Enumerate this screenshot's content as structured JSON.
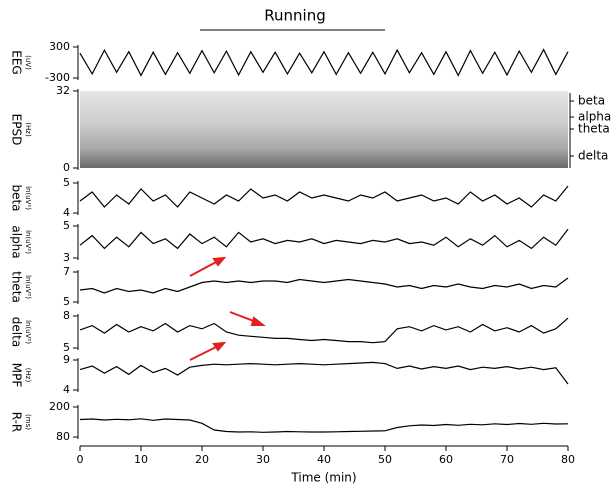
{
  "chart_data": [
    {
      "type": "line",
      "title": "Running",
      "ylabel": "EEG",
      "yunit": "(uV)",
      "xlim": [
        0,
        80
      ],
      "ylim": [
        -300,
        300
      ],
      "yticks": [
        300,
        -300
      ],
      "color": "#000000",
      "x": [
        0,
        2,
        4,
        6,
        8,
        10,
        12,
        14,
        16,
        18,
        20,
        22,
        24,
        26,
        28,
        30,
        32,
        34,
        36,
        38,
        40,
        42,
        44,
        46,
        48,
        50,
        52,
        54,
        56,
        58,
        60,
        62,
        64,
        66,
        68,
        70,
        72,
        74,
        76,
        78,
        80
      ],
      "values": [
        180,
        -220,
        240,
        -190,
        210,
        -250,
        200,
        -230,
        190,
        -210,
        230,
        -200,
        220,
        -240,
        210,
        -190,
        200,
        -220,
        180,
        -200,
        210,
        -230,
        190,
        -210,
        200,
        -220,
        240,
        -200,
        190,
        -230,
        210,
        -250,
        230,
        -210,
        200,
        -240,
        220,
        -190,
        250,
        -230,
        210
      ]
    },
    {
      "type": "spectrogram",
      "ylabel": "EPSD",
      "yunit": "(Hz)",
      "xlim": [
        0,
        80
      ],
      "ylim": [
        0,
        32
      ],
      "yticks": [
        32,
        0
      ],
      "band_labels": [
        "beta",
        "alpha",
        "theta",
        "delta"
      ]
    },
    {
      "type": "line",
      "ylabel": "beta",
      "yunit": "ln(uV²)",
      "xlim": [
        0,
        80
      ],
      "ylim": [
        4,
        5
      ],
      "yticks": [
        5,
        4
      ],
      "color": "#000000",
      "x": [
        0,
        2,
        4,
        6,
        8,
        10,
        12,
        14,
        16,
        18,
        20,
        22,
        24,
        26,
        28,
        30,
        32,
        34,
        36,
        38,
        40,
        42,
        44,
        46,
        48,
        50,
        52,
        54,
        56,
        58,
        60,
        62,
        64,
        66,
        68,
        70,
        72,
        74,
        76,
        78,
        80
      ],
      "values": [
        4.4,
        4.7,
        4.2,
        4.6,
        4.3,
        4.8,
        4.4,
        4.6,
        4.2,
        4.7,
        4.5,
        4.3,
        4.6,
        4.4,
        4.8,
        4.5,
        4.6,
        4.4,
        4.7,
        4.5,
        4.6,
        4.5,
        4.4,
        4.6,
        4.5,
        4.7,
        4.4,
        4.5,
        4.6,
        4.4,
        4.5,
        4.3,
        4.7,
        4.4,
        4.6,
        4.3,
        4.5,
        4.2,
        4.6,
        4.4,
        4.9
      ]
    },
    {
      "type": "line",
      "ylabel": "alpha",
      "yunit": "ln(uV²)",
      "xlim": [
        0,
        80
      ],
      "ylim": [
        3,
        5
      ],
      "yticks": [
        5,
        3
      ],
      "color": "#000000",
      "x": [
        0,
        2,
        4,
        6,
        8,
        10,
        12,
        14,
        16,
        18,
        20,
        22,
        24,
        26,
        28,
        30,
        32,
        34,
        36,
        38,
        40,
        42,
        44,
        46,
        48,
        50,
        52,
        54,
        56,
        58,
        60,
        62,
        64,
        66,
        68,
        70,
        72,
        74,
        76,
        78,
        80
      ],
      "values": [
        3.8,
        4.4,
        3.6,
        4.3,
        3.7,
        4.6,
        3.9,
        4.2,
        3.6,
        4.5,
        3.9,
        4.3,
        3.7,
        4.6,
        4.0,
        4.2,
        3.9,
        4.1,
        4.0,
        4.2,
        3.9,
        4.1,
        4.0,
        3.9,
        4.1,
        4.0,
        4.2,
        3.9,
        4.0,
        3.8,
        4.3,
        3.7,
        4.2,
        3.8,
        4.4,
        3.7,
        4.1,
        3.6,
        4.3,
        3.8,
        4.8
      ]
    },
    {
      "type": "line",
      "ylabel": "theta",
      "yunit": "ln(uV²)",
      "xlim": [
        0,
        80
      ],
      "ylim": [
        5,
        7
      ],
      "yticks": [
        7,
        5
      ],
      "color": "#000000",
      "x": [
        0,
        2,
        4,
        6,
        8,
        10,
        12,
        14,
        16,
        18,
        20,
        22,
        24,
        26,
        28,
        30,
        32,
        34,
        36,
        38,
        40,
        42,
        44,
        46,
        48,
        50,
        52,
        54,
        56,
        58,
        60,
        62,
        64,
        66,
        68,
        70,
        72,
        74,
        76,
        78,
        80
      ],
      "values": [
        5.8,
        5.9,
        5.6,
        5.9,
        5.7,
        5.8,
        5.6,
        5.9,
        5.7,
        6.0,
        6.3,
        6.4,
        6.3,
        6.4,
        6.3,
        6.4,
        6.4,
        6.3,
        6.5,
        6.4,
        6.3,
        6.4,
        6.5,
        6.4,
        6.3,
        6.2,
        6.0,
        6.1,
        5.9,
        6.1,
        6.0,
        6.2,
        6.0,
        5.9,
        6.1,
        6.0,
        6.2,
        5.9,
        6.1,
        6.0,
        6.6
      ]
    },
    {
      "type": "line",
      "ylabel": "delta",
      "yunit": "ln(uV²)",
      "xlim": [
        0,
        80
      ],
      "ylim": [
        5,
        8
      ],
      "yticks": [
        8,
        5
      ],
      "color": "#000000",
      "x": [
        0,
        2,
        4,
        6,
        8,
        10,
        12,
        14,
        16,
        18,
        20,
        22,
        24,
        26,
        28,
        30,
        32,
        34,
        36,
        38,
        40,
        42,
        44,
        46,
        48,
        50,
        52,
        54,
        56,
        58,
        60,
        62,
        64,
        66,
        68,
        70,
        72,
        74,
        76,
        78,
        80
      ],
      "values": [
        6.7,
        7.1,
        6.4,
        7.2,
        6.5,
        7.0,
        6.6,
        7.3,
        6.5,
        7.1,
        6.8,
        7.3,
        6.5,
        6.2,
        6.1,
        6.0,
        5.9,
        5.9,
        5.8,
        5.7,
        5.8,
        5.7,
        5.6,
        5.6,
        5.5,
        5.6,
        6.8,
        7.0,
        6.6,
        7.1,
        6.7,
        7.0,
        6.5,
        7.2,
        6.6,
        6.9,
        6.5,
        7.1,
        6.4,
        6.8,
        7.8
      ]
    },
    {
      "type": "line",
      "ylabel": "MPF",
      "yunit": "(Hz)",
      "xlim": [
        0,
        80
      ],
      "ylim": [
        4,
        9
      ],
      "yticks": [
        9,
        4
      ],
      "color": "#000000",
      "x": [
        0,
        2,
        4,
        6,
        8,
        10,
        12,
        14,
        16,
        18,
        20,
        22,
        24,
        26,
        28,
        30,
        32,
        34,
        36,
        38,
        40,
        42,
        44,
        46,
        48,
        50,
        52,
        54,
        56,
        58,
        60,
        62,
        64,
        66,
        68,
        70,
        72,
        74,
        76,
        78,
        80
      ],
      "values": [
        7.4,
        8.0,
        6.8,
        7.9,
        6.6,
        8.1,
        6.9,
        7.6,
        6.5,
        7.8,
        8.1,
        8.3,
        8.2,
        8.3,
        8.4,
        8.3,
        8.2,
        8.3,
        8.4,
        8.3,
        8.2,
        8.3,
        8.4,
        8.5,
        8.6,
        8.4,
        7.6,
        8.0,
        7.5,
        7.9,
        7.6,
        8.0,
        7.4,
        7.8,
        7.6,
        7.9,
        7.5,
        7.8,
        7.4,
        7.7,
        5.0
      ]
    },
    {
      "type": "line",
      "ylabel": "R-R",
      "yunit": "(ms)",
      "xlabel": "Time (min)",
      "xlim": [
        0,
        80
      ],
      "xticks": [
        0,
        10,
        20,
        30,
        40,
        50,
        60,
        70,
        80
      ],
      "ylim": [
        80,
        200
      ],
      "yticks": [
        200,
        80
      ],
      "color": "#000000",
      "x": [
        0,
        2,
        4,
        6,
        8,
        10,
        12,
        14,
        16,
        18,
        20,
        22,
        24,
        26,
        28,
        30,
        32,
        34,
        36,
        38,
        40,
        42,
        44,
        46,
        48,
        50,
        52,
        54,
        56,
        58,
        60,
        62,
        64,
        66,
        68,
        70,
        72,
        74,
        76,
        78,
        80
      ],
      "values": [
        150,
        152,
        148,
        151,
        149,
        153,
        147,
        152,
        150,
        148,
        135,
        108,
        102,
        100,
        101,
        99,
        100,
        102,
        101,
        100,
        100,
        101,
        102,
        103,
        104,
        105,
        118,
        125,
        128,
        126,
        130,
        127,
        131,
        129,
        133,
        130,
        134,
        131,
        135,
        132,
        133
      ]
    }
  ]
}
